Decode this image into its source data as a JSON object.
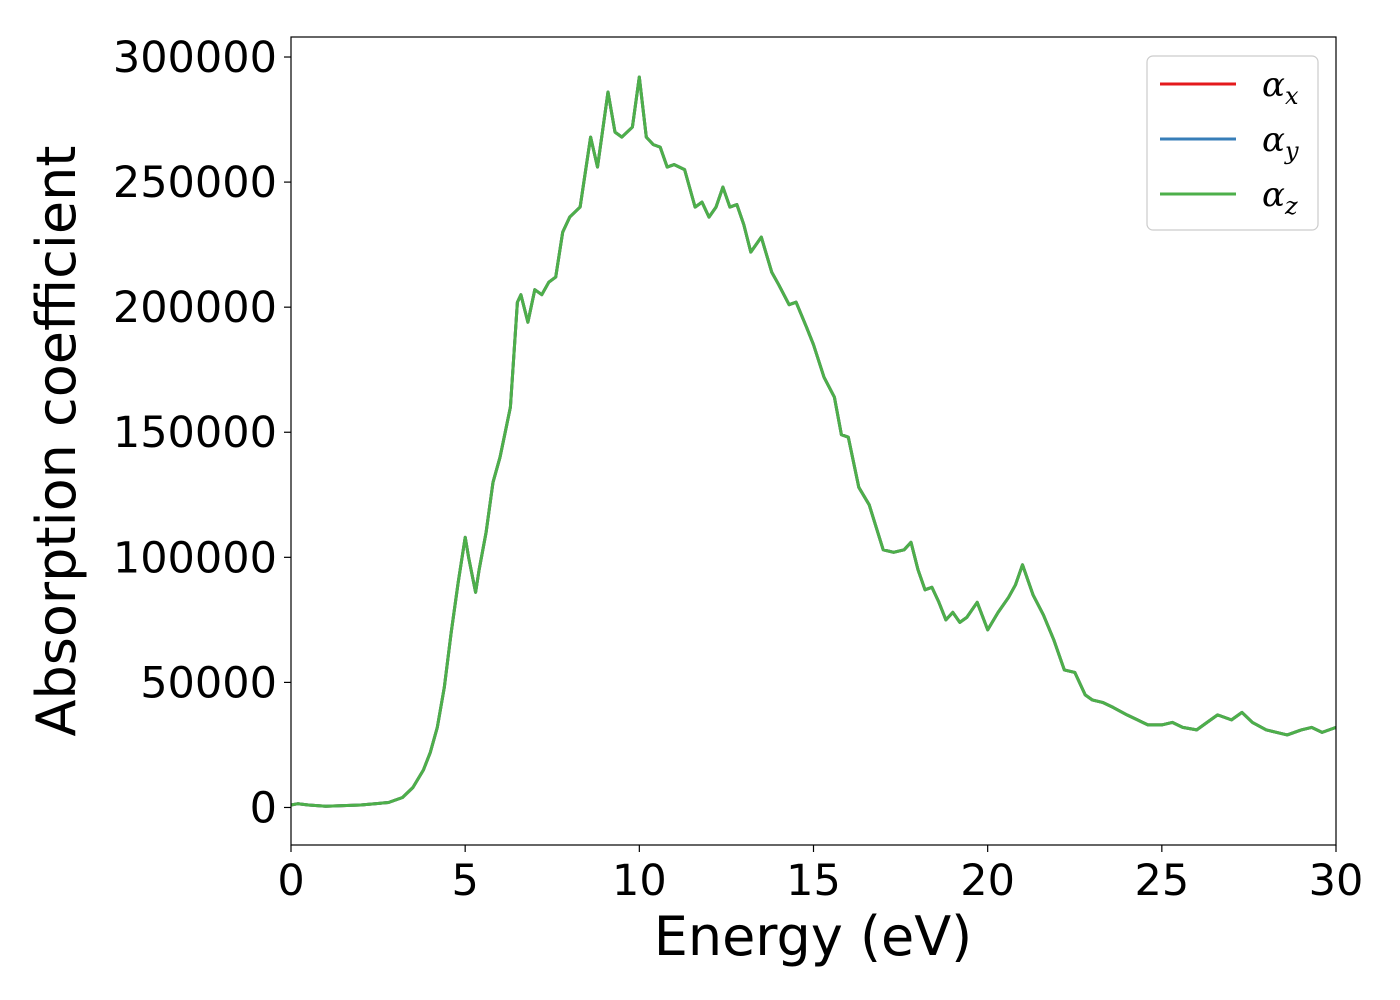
{
  "chart_data": {
    "type": "line",
    "title": "",
    "xlabel": "Energy (eV)",
    "ylabel": "Absorption coefficient",
    "xlim": [
      0,
      30
    ],
    "ylim": [
      -15000,
      308000
    ],
    "xticks": [
      0,
      5,
      10,
      15,
      20,
      25,
      30
    ],
    "xtick_labels": [
      "0",
      "5",
      "10",
      "15",
      "20",
      "25",
      "30"
    ],
    "yticks": [
      0,
      50000,
      100000,
      150000,
      200000,
      250000,
      300000
    ],
    "ytick_labels": [
      "0",
      "50000",
      "100000",
      "150000",
      "200000",
      "250000",
      "300000"
    ],
    "grid": false,
    "legend_position": "top-right",
    "series": [
      {
        "name": "αx",
        "legend_base": "α",
        "legend_sub": "x",
        "color": "#e41a1c",
        "x": [
          0,
          0.2,
          0.5,
          1.0,
          2.0,
          2.8,
          3.2,
          3.5,
          3.8,
          4.0,
          4.2,
          4.4,
          4.6,
          4.8,
          5.0,
          5.1,
          5.3,
          5.4,
          5.6,
          5.8,
          6.0,
          6.3,
          6.5,
          6.6,
          6.8,
          7.0,
          7.2,
          7.4,
          7.6,
          7.8,
          8.0,
          8.3,
          8.6,
          8.8,
          9.1,
          9.3,
          9.5,
          9.8,
          10.0,
          10.2,
          10.4,
          10.6,
          10.8,
          11.0,
          11.3,
          11.6,
          11.8,
          12.0,
          12.2,
          12.4,
          12.6,
          12.8,
          13.0,
          13.2,
          13.5,
          13.8,
          14.0,
          14.3,
          14.5,
          14.8,
          15.0,
          15.3,
          15.6,
          15.8,
          16.0,
          16.3,
          16.6,
          16.8,
          17.0,
          17.3,
          17.6,
          17.8,
          18.0,
          18.2,
          18.4,
          18.6,
          18.8,
          19.0,
          19.2,
          19.4,
          19.7,
          20.0,
          20.3,
          20.6,
          20.8,
          21.0,
          21.3,
          21.6,
          21.9,
          22.2,
          22.5,
          22.8,
          23.0,
          23.3,
          23.6,
          24.0,
          24.3,
          24.6,
          25.0,
          25.3,
          25.6,
          26.0,
          26.3,
          26.6,
          27.0,
          27.3,
          27.6,
          28.0,
          28.3,
          28.6,
          29.0,
          29.3,
          29.6,
          30.0
        ],
        "y": [
          1000,
          1500,
          1000,
          500,
          1000,
          2000,
          4000,
          8000,
          15000,
          22000,
          32000,
          48000,
          70000,
          90000,
          108000,
          100000,
          86000,
          95000,
          110000,
          130000,
          140000,
          160000,
          202000,
          205000,
          194000,
          207000,
          205000,
          210000,
          212000,
          230000,
          236000,
          240000,
          268000,
          256000,
          286000,
          270000,
          268000,
          272000,
          292000,
          268000,
          265000,
          264000,
          256000,
          257000,
          255000,
          240000,
          242000,
          236000,
          240000,
          248000,
          240000,
          241000,
          233000,
          222000,
          228000,
          214000,
          209000,
          201000,
          202000,
          192000,
          185000,
          172000,
          164000,
          149000,
          148000,
          128000,
          121000,
          112000,
          103000,
          102000,
          103000,
          106000,
          95000,
          87000,
          88000,
          82000,
          75000,
          78000,
          74000,
          76000,
          82000,
          71000,
          78000,
          84000,
          89000,
          97000,
          85000,
          77000,
          67000,
          55000,
          54000,
          45000,
          43000,
          42000,
          40000,
          37000,
          35000,
          33000,
          33000,
          34000,
          32000,
          31000,
          34000,
          37000,
          35000,
          38000,
          34000,
          31000,
          30000,
          29000,
          31000,
          32000,
          30000,
          32000
        ]
      },
      {
        "name": "αy",
        "legend_base": "α",
        "legend_sub": "y",
        "color": "#377eb8",
        "x": [
          0,
          0.2,
          0.5,
          1.0,
          2.0,
          2.8,
          3.2,
          3.5,
          3.8,
          4.0,
          4.2,
          4.4,
          4.6,
          4.8,
          5.0,
          5.1,
          5.3,
          5.4,
          5.6,
          5.8,
          6.0,
          6.3,
          6.5,
          6.6,
          6.8,
          7.0,
          7.2,
          7.4,
          7.6,
          7.8,
          8.0,
          8.3,
          8.6,
          8.8,
          9.1,
          9.3,
          9.5,
          9.8,
          10.0,
          10.2,
          10.4,
          10.6,
          10.8,
          11.0,
          11.3,
          11.6,
          11.8,
          12.0,
          12.2,
          12.4,
          12.6,
          12.8,
          13.0,
          13.2,
          13.5,
          13.8,
          14.0,
          14.3,
          14.5,
          14.8,
          15.0,
          15.3,
          15.6,
          15.8,
          16.0,
          16.3,
          16.6,
          16.8,
          17.0,
          17.3,
          17.6,
          17.8,
          18.0,
          18.2,
          18.4,
          18.6,
          18.8,
          19.0,
          19.2,
          19.4,
          19.7,
          20.0,
          20.3,
          20.6,
          20.8,
          21.0,
          21.3,
          21.6,
          21.9,
          22.2,
          22.5,
          22.8,
          23.0,
          23.3,
          23.6,
          24.0,
          24.3,
          24.6,
          25.0,
          25.3,
          25.6,
          26.0,
          26.3,
          26.6,
          27.0,
          27.3,
          27.6,
          28.0,
          28.3,
          28.6,
          29.0,
          29.3,
          29.6,
          30.0
        ],
        "y": [
          1000,
          1500,
          1000,
          500,
          1000,
          2000,
          4000,
          8000,
          15000,
          22000,
          32000,
          48000,
          70000,
          90000,
          108000,
          100000,
          86000,
          95000,
          110000,
          130000,
          140000,
          160000,
          202000,
          205000,
          194000,
          207000,
          205000,
          210000,
          212000,
          230000,
          236000,
          240000,
          268000,
          256000,
          286000,
          270000,
          268000,
          272000,
          292000,
          268000,
          265000,
          264000,
          256000,
          257000,
          255000,
          240000,
          242000,
          236000,
          240000,
          248000,
          240000,
          241000,
          233000,
          222000,
          228000,
          214000,
          209000,
          201000,
          202000,
          192000,
          185000,
          172000,
          164000,
          149000,
          148000,
          128000,
          121000,
          112000,
          103000,
          102000,
          103000,
          106000,
          95000,
          87000,
          88000,
          82000,
          75000,
          78000,
          74000,
          76000,
          82000,
          71000,
          78000,
          84000,
          89000,
          97000,
          85000,
          77000,
          67000,
          55000,
          54000,
          45000,
          43000,
          42000,
          40000,
          37000,
          35000,
          33000,
          33000,
          34000,
          32000,
          31000,
          34000,
          37000,
          35000,
          38000,
          34000,
          31000,
          30000,
          29000,
          31000,
          32000,
          30000,
          32000
        ]
      },
      {
        "name": "αz",
        "legend_base": "α",
        "legend_sub": "z",
        "color": "#4daf4a",
        "x": [
          0,
          0.2,
          0.5,
          1.0,
          2.0,
          2.8,
          3.2,
          3.5,
          3.8,
          4.0,
          4.2,
          4.4,
          4.6,
          4.8,
          5.0,
          5.1,
          5.3,
          5.4,
          5.6,
          5.8,
          6.0,
          6.3,
          6.5,
          6.6,
          6.8,
          7.0,
          7.2,
          7.4,
          7.6,
          7.8,
          8.0,
          8.3,
          8.6,
          8.8,
          9.1,
          9.3,
          9.5,
          9.8,
          10.0,
          10.2,
          10.4,
          10.6,
          10.8,
          11.0,
          11.3,
          11.6,
          11.8,
          12.0,
          12.2,
          12.4,
          12.6,
          12.8,
          13.0,
          13.2,
          13.5,
          13.8,
          14.0,
          14.3,
          14.5,
          14.8,
          15.0,
          15.3,
          15.6,
          15.8,
          16.0,
          16.3,
          16.6,
          16.8,
          17.0,
          17.3,
          17.6,
          17.8,
          18.0,
          18.2,
          18.4,
          18.6,
          18.8,
          19.0,
          19.2,
          19.4,
          19.7,
          20.0,
          20.3,
          20.6,
          20.8,
          21.0,
          21.3,
          21.6,
          21.9,
          22.2,
          22.5,
          22.8,
          23.0,
          23.3,
          23.6,
          24.0,
          24.3,
          24.6,
          25.0,
          25.3,
          25.6,
          26.0,
          26.3,
          26.6,
          27.0,
          27.3,
          27.6,
          28.0,
          28.3,
          28.6,
          29.0,
          29.3,
          29.6,
          30.0
        ],
        "y": [
          1000,
          1500,
          1000,
          500,
          1000,
          2000,
          4000,
          8000,
          15000,
          22000,
          32000,
          48000,
          70000,
          90000,
          108000,
          100000,
          86000,
          95000,
          110000,
          130000,
          140000,
          160000,
          202000,
          205000,
          194000,
          207000,
          205000,
          210000,
          212000,
          230000,
          236000,
          240000,
          268000,
          256000,
          286000,
          270000,
          268000,
          272000,
          292000,
          268000,
          265000,
          264000,
          256000,
          257000,
          255000,
          240000,
          242000,
          236000,
          240000,
          248000,
          240000,
          241000,
          233000,
          222000,
          228000,
          214000,
          209000,
          201000,
          202000,
          192000,
          185000,
          172000,
          164000,
          149000,
          148000,
          128000,
          121000,
          112000,
          103000,
          102000,
          103000,
          106000,
          95000,
          87000,
          88000,
          82000,
          75000,
          78000,
          74000,
          76000,
          82000,
          71000,
          78000,
          84000,
          89000,
          97000,
          85000,
          77000,
          67000,
          55000,
          54000,
          45000,
          43000,
          42000,
          40000,
          37000,
          35000,
          33000,
          33000,
          34000,
          32000,
          31000,
          34000,
          37000,
          35000,
          38000,
          34000,
          31000,
          30000,
          29000,
          31000,
          32000,
          30000,
          32000
        ]
      }
    ]
  }
}
